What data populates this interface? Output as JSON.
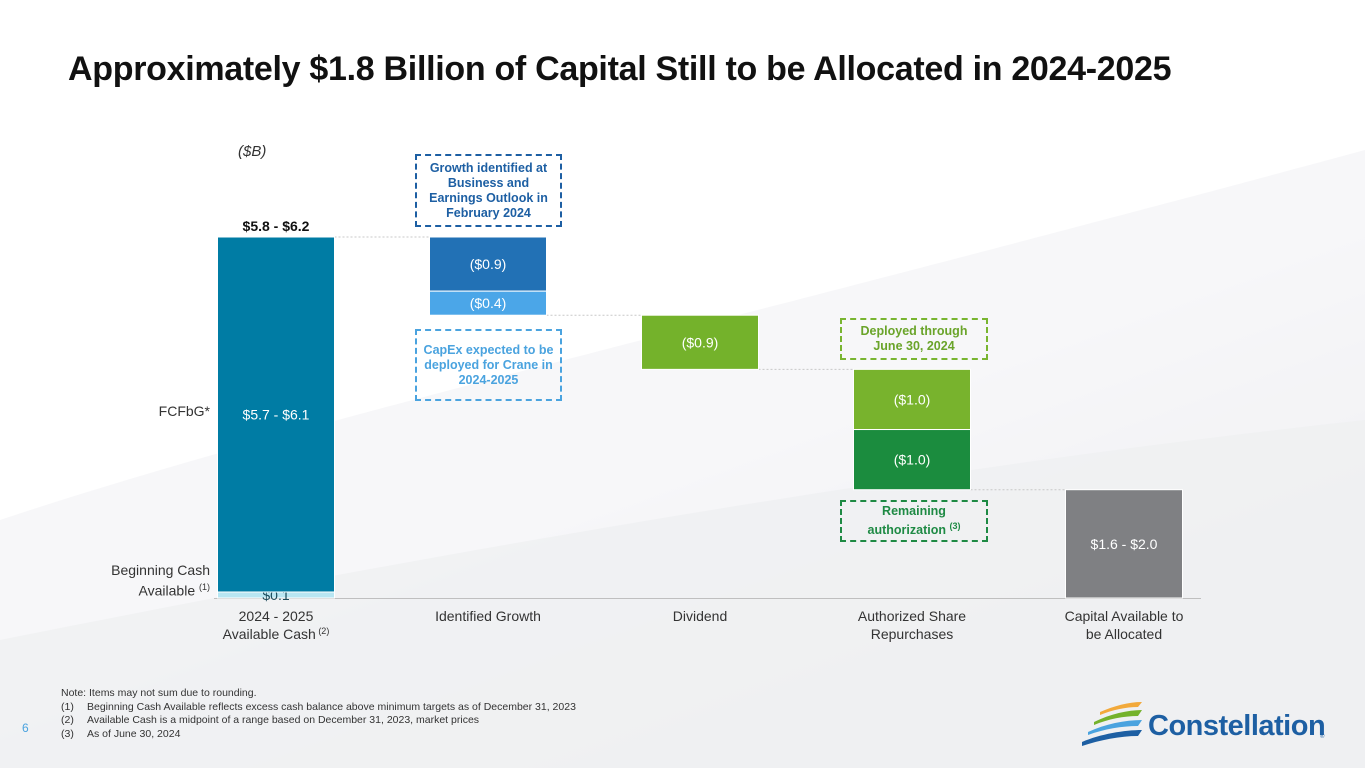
{
  "title": "Approximately $1.8 Billion of Capital Still to be Allocated in 2024-2025",
  "unit_label": "($B)",
  "side_labels": {
    "fcfbg": "FCFbG*",
    "beginning_cash_line1": "Beginning Cash",
    "beginning_cash_line2": "Available",
    "beginning_cash_sup": "(1)"
  },
  "callouts": {
    "growth_identified": "Growth identified at Business and Earnings Outlook in February 2024",
    "capex_crane": "CapEx expected to be deployed for Crane in 2024-2025",
    "deployed_through": "Deployed through June 30, 2024",
    "remaining_authorization": "Remaining authorization",
    "remaining_authorization_sup": "(3)"
  },
  "chart_data": {
    "type": "waterfall",
    "unit": "($B)",
    "ylim": [
      0,
      6.0
    ],
    "categories": [
      {
        "line1": "2024 - 2025",
        "line2": "Available Cash",
        "sup": "(2)"
      },
      {
        "line1": "Identified Growth",
        "line2": "",
        "sup": ""
      },
      {
        "line1": "Dividend",
        "line2": "",
        "sup": ""
      },
      {
        "line1": "Authorized Share",
        "line2": "Repurchases",
        "sup": ""
      },
      {
        "line1": "Capital Available to",
        "line2": "be Allocated",
        "sup": ""
      }
    ],
    "top_label": "$5.8 - $6.2",
    "segments": [
      {
        "category": 0,
        "from": 0.0,
        "to": 0.1,
        "label": "$0.1",
        "color": "#b8e6f2"
      },
      {
        "category": 0,
        "from": 0.1,
        "to": 6.0,
        "label": "$5.7 - $6.1",
        "color": "#007ca4"
      },
      {
        "category": 1,
        "from": 6.0,
        "to": 5.1,
        "label": "($0.9)",
        "color": "#2271b5"
      },
      {
        "category": 1,
        "from": 5.1,
        "to": 4.7,
        "label": "($0.4)",
        "color": "#4ba6e8"
      },
      {
        "category": 2,
        "from": 4.7,
        "to": 3.8,
        "label": "($0.9)",
        "color": "#74b22b"
      },
      {
        "category": 3,
        "from": 3.8,
        "to": 2.8,
        "label": "($1.0)",
        "color": "#78b32d"
      },
      {
        "category": 3,
        "from": 2.8,
        "to": 1.8,
        "label": "($1.0)",
        "color": "#1b8c3e"
      },
      {
        "category": 4,
        "from": 1.8,
        "to": 0.0,
        "label": "$1.6 - $2.0",
        "color": "#7f8083"
      }
    ]
  },
  "notes": {
    "header": "Note: Items may not sum due to rounding.",
    "items": [
      {
        "num": "(1)",
        "text": "Beginning Cash Available reflects excess cash balance above minimum targets as of December 31, 2023"
      },
      {
        "num": "(2)",
        "text": "Available Cash is a midpoint of a range based on December 31, 2023, market prices"
      },
      {
        "num": "(3)",
        "text": "As of June 30, 2024"
      }
    ]
  },
  "page_number": "6",
  "logo": {
    "text": "Constellation",
    "reg": "®",
    "colors": [
      "#1d5fa3",
      "#e05a2a",
      "#f2a93b",
      "#4aa3df",
      "#74b22b"
    ]
  }
}
